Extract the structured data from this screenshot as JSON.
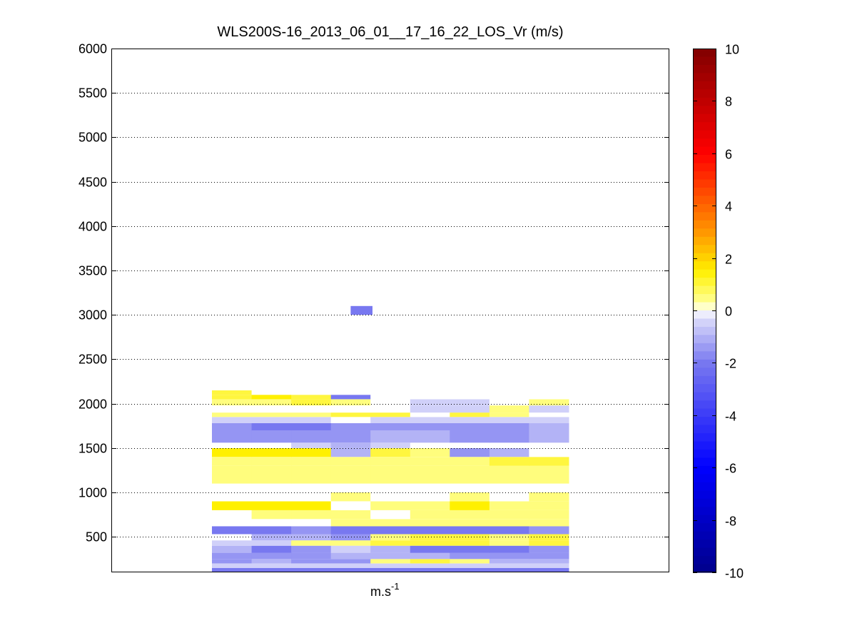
{
  "chart_data": {
    "type": "heatmap",
    "title": "WLS200S-16_2013_06_01__17_16_22_LOS_Vr (m/s)",
    "xlabel": "m.s",
    "xlabel_superscript": "-1",
    "ylabel": "",
    "ylim": [
      100,
      6000
    ],
    "yticks": [
      500,
      1000,
      1500,
      2000,
      2500,
      3000,
      3500,
      4000,
      4500,
      5000,
      5500,
      6000
    ],
    "grid": "horizontal dotted",
    "colorbar": {
      "clim": [
        -10,
        10
      ],
      "ticks": [
        -10,
        -8,
        -6,
        -4,
        -2,
        0,
        2,
        4,
        6,
        8,
        10
      ],
      "colormap": "blue-white-yellow-red",
      "colors": {
        "min": "#00008c",
        "neg": "#0000ff",
        "zero": "#ffffff",
        "low_pos": "#ffff00",
        "mid_pos": "#ff8000",
        "high_pos": "#ff0000",
        "max": "#800000"
      }
    },
    "columns": 9,
    "isolated_cell": {
      "column": 3.5,
      "altitude_range": [
        3000,
        3100
      ],
      "value": -2
    },
    "layers": [
      {
        "range": [
          100,
          150
        ],
        "values": [
          -2,
          -2,
          -2,
          -2,
          -2,
          -2,
          -2,
          -2,
          -2
        ]
      },
      {
        "range": [
          150,
          200
        ],
        "values": [
          -0.5,
          -0.5,
          -0.5,
          -0.5,
          -0.5,
          -0.5,
          -0.5,
          -0.5,
          -0.5
        ]
      },
      {
        "range": [
          200,
          250
        ],
        "values": [
          -1.5,
          -1,
          -1.5,
          -1.5,
          0.5,
          1,
          0.5,
          -1,
          -1
        ]
      },
      {
        "range": [
          250,
          320
        ],
        "values": [
          -1.5,
          -1.5,
          -1.5,
          -1,
          -1,
          -1,
          -1.5,
          -1.5,
          -1.5
        ]
      },
      {
        "range": [
          320,
          400
        ],
        "values": [
          -1,
          -2,
          -1.5,
          -0.5,
          -1,
          -2,
          -2,
          -2,
          -1.5
        ]
      },
      {
        "range": [
          400,
          460
        ],
        "values": [
          -0.5,
          -0.5,
          0.5,
          0.5,
          1,
          1,
          1,
          0.5,
          1
        ]
      },
      {
        "range": [
          460,
          530
        ],
        "values": [
          0,
          -1,
          -1,
          -1.5,
          0.5,
          1,
          1,
          0.5,
          1
        ]
      },
      {
        "range": [
          530,
          620
        ],
        "values": [
          -2,
          -2,
          -1.5,
          -2,
          -2,
          -2,
          -2,
          -2,
          -1.5
        ]
      },
      {
        "range": [
          620,
          700
        ],
        "values": [
          0,
          0,
          0,
          0.5,
          0.5,
          0.5,
          0.5,
          0.5,
          0.5
        ]
      },
      {
        "range": [
          700,
          800
        ],
        "values": [
          0,
          0.5,
          0.5,
          0.5,
          0,
          0.5,
          0.5,
          0.5,
          0.5
        ]
      },
      {
        "range": [
          800,
          900
        ],
        "values": [
          1.5,
          1.5,
          1.5,
          0,
          0.5,
          0.5,
          1.5,
          0.5,
          0.5
        ]
      },
      {
        "range": [
          900,
          1000
        ],
        "values": [
          0,
          0,
          0,
          0.5,
          0,
          0,
          0.5,
          0,
          0.5
        ]
      },
      {
        "range": [
          1000,
          1100
        ],
        "values": [
          0,
          0,
          0,
          0,
          0,
          0,
          0,
          0,
          0
        ]
      },
      {
        "range": [
          1100,
          1300
        ],
        "values": [
          0.5,
          0.5,
          0.5,
          0.5,
          0.5,
          0.5,
          0.5,
          0.5,
          0.5
        ]
      },
      {
        "range": [
          1300,
          1400
        ],
        "values": [
          0.5,
          0.5,
          0.5,
          0.5,
          0.5,
          0.5,
          0.5,
          1,
          1
        ]
      },
      {
        "range": [
          1400,
          1500
        ],
        "values": [
          1.5,
          1.5,
          1.5,
          -1,
          1,
          0.5,
          -1.5,
          -1,
          0
        ]
      },
      {
        "range": [
          1500,
          1560
        ],
        "values": [
          0,
          0,
          -0.5,
          -1,
          -0.5,
          0,
          0,
          0,
          0
        ]
      },
      {
        "range": [
          1560,
          1700
        ],
        "values": [
          -1.5,
          -1.5,
          -1.5,
          -1.5,
          -1,
          -1,
          -1.5,
          -1.5,
          -1
        ]
      },
      {
        "range": [
          1700,
          1780
        ],
        "values": [
          -1.5,
          -2,
          -2,
          -1.5,
          -1.5,
          -1.5,
          -1.5,
          -1.5,
          -1
        ]
      },
      {
        "range": [
          1780,
          1850
        ],
        "values": [
          -0.5,
          -0.5,
          -0.5,
          0,
          -0.5,
          -0.5,
          -0.5,
          -0.5,
          -0.5
        ]
      },
      {
        "range": [
          1850,
          1900
        ],
        "values": [
          0.5,
          0.5,
          0.5,
          1,
          1,
          0,
          1,
          0.5,
          0
        ]
      },
      {
        "range": [
          1900,
          1980
        ],
        "values": [
          0,
          0,
          0,
          0,
          0,
          -0.5,
          -0.5,
          0.5,
          -0.5
        ]
      },
      {
        "range": [
          1980,
          2050
        ],
        "values": [
          0.5,
          0.5,
          1,
          0.5,
          0,
          -0.5,
          -0.5,
          0,
          0.5
        ]
      },
      {
        "range": [
          2050,
          2100
        ],
        "values": [
          1,
          1.5,
          1,
          -2,
          0,
          0,
          0,
          0,
          0
        ]
      },
      {
        "range": [
          2100,
          2150
        ],
        "values": [
          1,
          0,
          0,
          0,
          0,
          0,
          0,
          0,
          0
        ]
      }
    ]
  }
}
